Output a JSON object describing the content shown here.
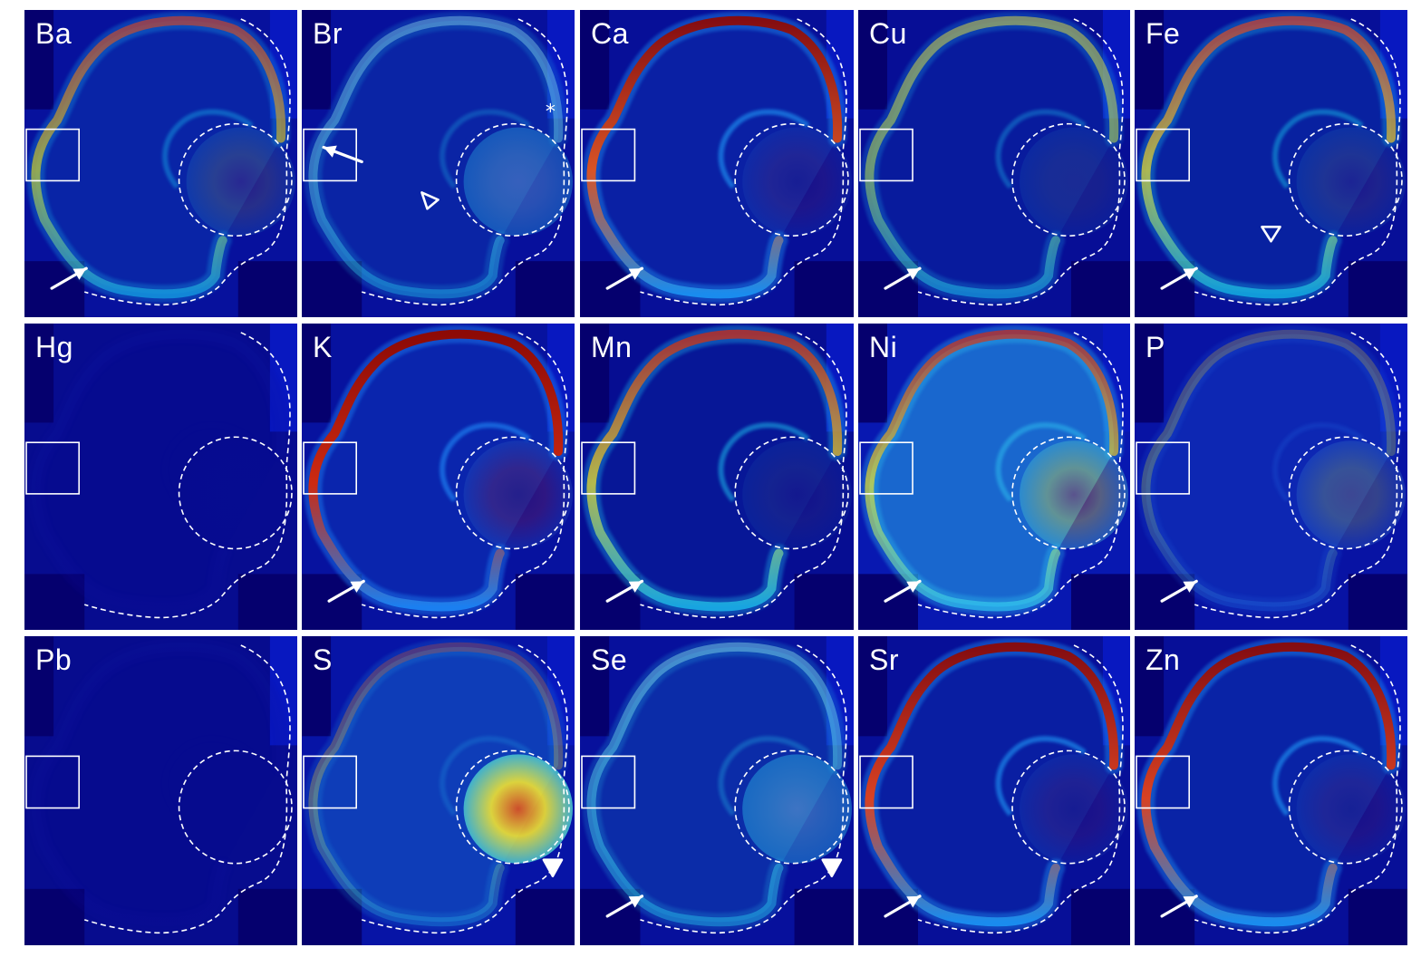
{
  "figure": {
    "panels": [
      {
        "label": "Ba",
        "palette": [
          "#16b6ee",
          "#e8e815",
          "#e2411a"
        ],
        "intensity": 0.6,
        "background": 0.18,
        "inner": 0.12,
        "disk": 0.14,
        "marker": "arrow"
      },
      {
        "label": "Br",
        "palette": [
          "#24d7f5",
          "#7ff6f0",
          "#a8fbf7"
        ],
        "intensity": 0.35,
        "background": 0.16,
        "inner": 0.1,
        "disk": 0.28,
        "marker": "br"
      },
      {
        "label": "Ca",
        "palette": [
          "#1a8ff0",
          "#e2541d",
          "#8b0a08"
        ],
        "intensity": 0.95,
        "background": 0.12,
        "inner": 0.14,
        "disk": 0.1,
        "marker": "arrow"
      },
      {
        "label": "Cu",
        "palette": [
          "#1ac0f0",
          "#c8f040",
          "#eae33a"
        ],
        "intensity": 0.5,
        "background": 0.1,
        "inner": 0.08,
        "disk": 0.08,
        "marker": "arrow"
      },
      {
        "label": "Fe",
        "palette": [
          "#14c9ef",
          "#ffee20",
          "#e7401c"
        ],
        "intensity": 0.65,
        "background": 0.12,
        "inner": 0.1,
        "disk": 0.09,
        "marker": "fe"
      },
      {
        "label": "Hg",
        "palette": [
          "#0d0fa0",
          "#1020b0",
          "#1226b5"
        ],
        "intensity": 0.05,
        "background": 0.02,
        "inner": 0.02,
        "disk": 0.02,
        "marker": "none"
      },
      {
        "label": "K",
        "palette": [
          "#1b7ff0",
          "#cc2a12",
          "#8d0a06"
        ],
        "intensity": 1.0,
        "background": 0.2,
        "inner": 0.18,
        "disk": 0.2,
        "marker": "arrow"
      },
      {
        "label": "Mn",
        "palette": [
          "#1bc2ef",
          "#e9dc2b",
          "#cf2b12"
        ],
        "intensity": 0.75,
        "background": 0.06,
        "inner": 0.06,
        "disk": 0.06,
        "marker": "arrow"
      },
      {
        "label": "Ni",
        "palette": [
          "#2fc7f2",
          "#e6e42d",
          "#d22e14"
        ],
        "intensity": 0.7,
        "background": 0.4,
        "inner": 0.45,
        "disk": 0.35,
        "marker": "arrow"
      },
      {
        "label": "P",
        "palette": [
          "#2070e6",
          "#b4d345",
          "#c9a736"
        ],
        "intensity": 0.3,
        "background": 0.25,
        "inner": 0.22,
        "disk": 0.25,
        "marker": "arrow"
      },
      {
        "label": "Pb",
        "palette": [
          "#0d0fa0",
          "#0f1ba8",
          "#1220b0"
        ],
        "intensity": 0.03,
        "background": 0.01,
        "inner": 0.01,
        "disk": 0.01,
        "marker": "none"
      },
      {
        "label": "S",
        "palette": [
          "#23b6ef",
          "#f2e330",
          "#e1501c"
        ],
        "intensity": 0.3,
        "background": 0.28,
        "inner": 0.25,
        "disk": 0.9,
        "marker": "triangle"
      },
      {
        "label": "Se",
        "palette": [
          "#28d2f3",
          "#5fe9ef",
          "#98f3f3"
        ],
        "intensity": 0.4,
        "background": 0.16,
        "inner": 0.15,
        "disk": 0.36,
        "marker": "arrow-triangle"
      },
      {
        "label": "Sr",
        "palette": [
          "#1a8ff0",
          "#e2411a",
          "#8b0a08"
        ],
        "intensity": 0.95,
        "background": 0.12,
        "inner": 0.12,
        "disk": 0.1,
        "marker": "arrow"
      },
      {
        "label": "Zn",
        "palette": [
          "#1a8ff0",
          "#e2411a",
          "#8b0a08"
        ],
        "intensity": 0.95,
        "background": 0.12,
        "inner": 0.16,
        "disk": 0.1,
        "marker": "arrow"
      }
    ]
  }
}
